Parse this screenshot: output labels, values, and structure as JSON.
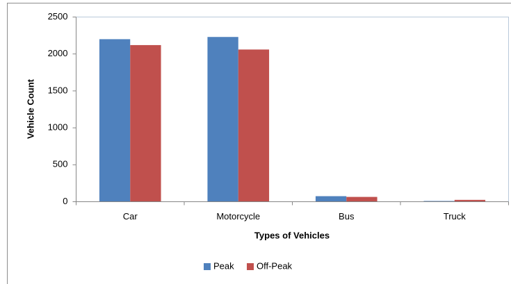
{
  "chart_data": {
    "type": "bar",
    "xlabel": "Types of Vehicles",
    "ylabel": "Vehicle Count",
    "categories": [
      "Car",
      "Motorcycle",
      "Bus",
      "Truck"
    ],
    "series": [
      {
        "name": "Peak",
        "color": "#4f81bd",
        "values": [
          2200,
          2230,
          75,
          10
        ]
      },
      {
        "name": "Off-Peak",
        "color": "#c0504d",
        "values": [
          2120,
          2060,
          65,
          25
        ]
      }
    ],
    "ylim": [
      0,
      2500
    ],
    "yticks": [
      0,
      500,
      1000,
      1500,
      2000,
      2500
    ],
    "grid": false,
    "legend": "bottom"
  }
}
